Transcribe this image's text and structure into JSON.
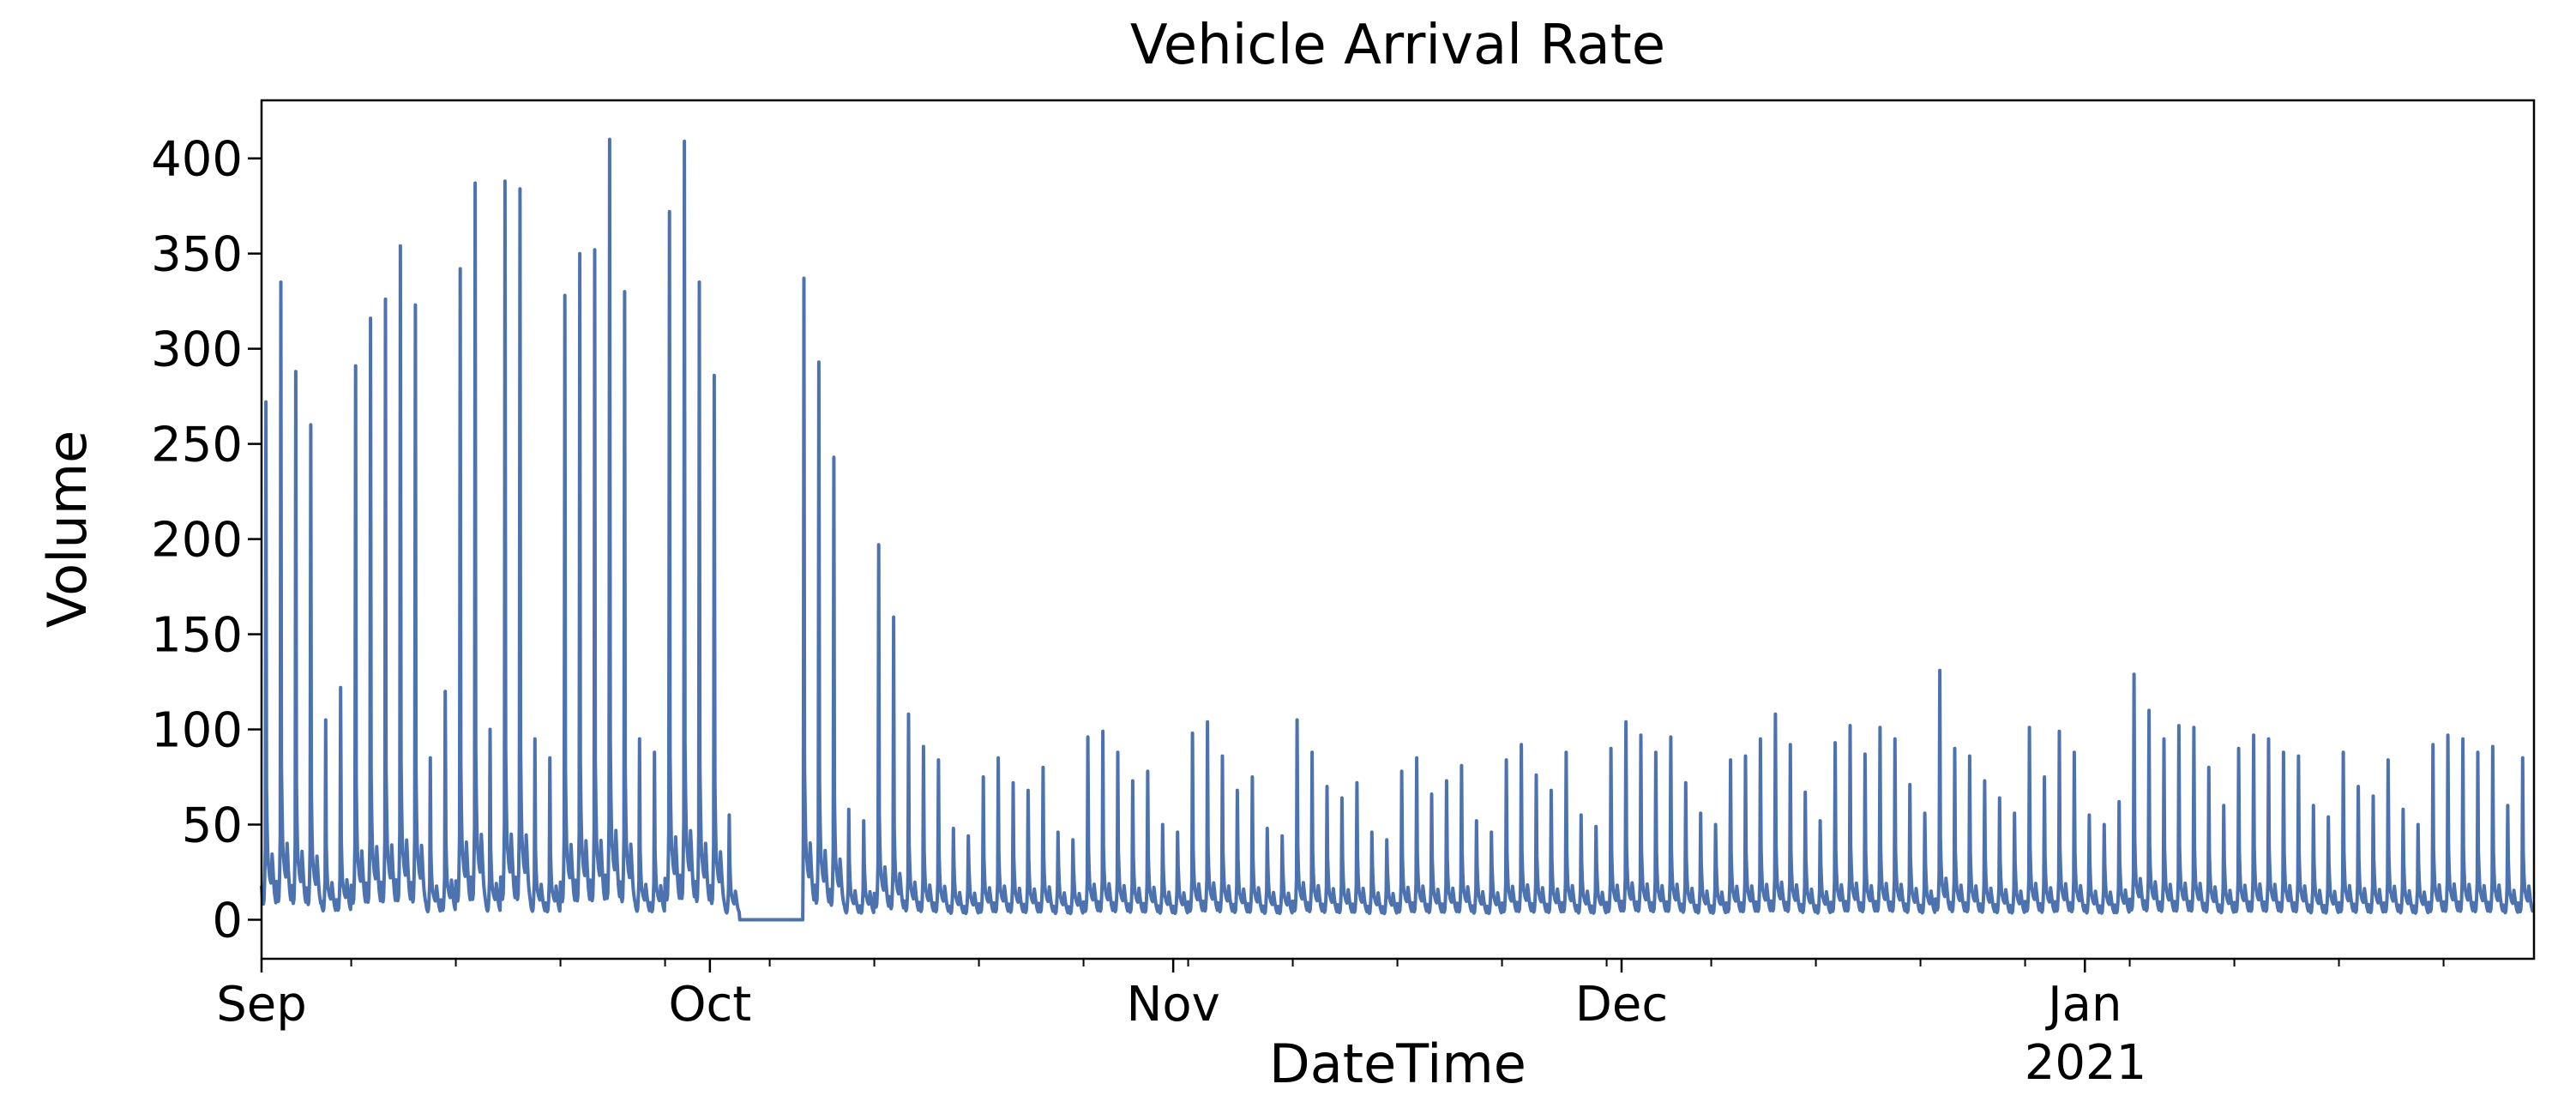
{
  "figure": {
    "title": "Vehicle Arrival Rate",
    "xlabel": "DateTime",
    "ylabel": "Volume",
    "year_sublabel": "2021"
  },
  "chart_data": {
    "type": "line",
    "title": "Vehicle Arrival Rate",
    "xlabel": "DateTime",
    "ylabel": "Volume",
    "series": [
      {
        "name": "Volume"
      }
    ],
    "line_color": "#4c72b0",
    "axis_color": "#000000",
    "background_color": "#ffffff",
    "grid": false,
    "legend": "none",
    "ylim": [
      -20.5,
      430.5
    ],
    "y_ticks": [
      0,
      50,
      100,
      150,
      200,
      250,
      300,
      350,
      400
    ],
    "x_domain_days": [
      0,
      152.05
    ],
    "x_start_date": "2020-09-01",
    "x_major_ticks": [
      {
        "label": "Sep",
        "day": 0
      },
      {
        "label": "Oct",
        "day": 30
      },
      {
        "label": "Nov",
        "day": 61
      },
      {
        "label": "Dec",
        "day": 91
      },
      {
        "label": "Jan",
        "day": 122,
        "sublabel": "2021"
      }
    ],
    "x_minor_tick_days": [
      6,
      13,
      20,
      27,
      34,
      41,
      48,
      55,
      62,
      69,
      76,
      83,
      90,
      97,
      104,
      111,
      118,
      125,
      132,
      139,
      146
    ],
    "sampling": "hourly values reconstructed from daily peak readings",
    "peak_hour": 7,
    "hour_shape": [
      0.25,
      0.18,
      0.14,
      0.12,
      0.15,
      0.3,
      0.55,
      0,
      1.0,
      0.7,
      0.5,
      0.42,
      0.38,
      0.33,
      0.3,
      0.28,
      0.35,
      0.5,
      0.42,
      0.33,
      0.26,
      0.2,
      0.16,
      0.13
    ],
    "shoulder_base": 20,
    "shoulder_factor": 0.18,
    "outage_zero_days": [
      32,
      33,
      34,
      35
    ],
    "daily_peaks": [
      272,
      335,
      288,
      260,
      105,
      122,
      291,
      316,
      326,
      354,
      323,
      85,
      120,
      342,
      387,
      100,
      388,
      384,
      95,
      85,
      328,
      350,
      352,
      410,
      330,
      95,
      88,
      372,
      409,
      335,
      286,
      55,
      0,
      0,
      0,
      0,
      337,
      293,
      243,
      58,
      52,
      197,
      159,
      108,
      91,
      84,
      48,
      44,
      75,
      85,
      72,
      68,
      80,
      46,
      42,
      96,
      99,
      88,
      73,
      78,
      50,
      46,
      98,
      104,
      86,
      68,
      75,
      48,
      44,
      105,
      88,
      70,
      64,
      72,
      46,
      42,
      78,
      85,
      66,
      73,
      81,
      52,
      46,
      84,
      92,
      76,
      68,
      88,
      55,
      49,
      90,
      104,
      97,
      88,
      96,
      72,
      56,
      50,
      84,
      86,
      95,
      108,
      92,
      67,
      52,
      93,
      102,
      87,
      101,
      95,
      71,
      56,
      131,
      90,
      86,
      73,
      64,
      56,
      101,
      75,
      99,
      88,
      55,
      50,
      62,
      129,
      110,
      95,
      102,
      101,
      80,
      60,
      90,
      97,
      95,
      88,
      86,
      60,
      54,
      88,
      70,
      65,
      84,
      58,
      50,
      92,
      97,
      95,
      88,
      91,
      60,
      85
    ]
  }
}
